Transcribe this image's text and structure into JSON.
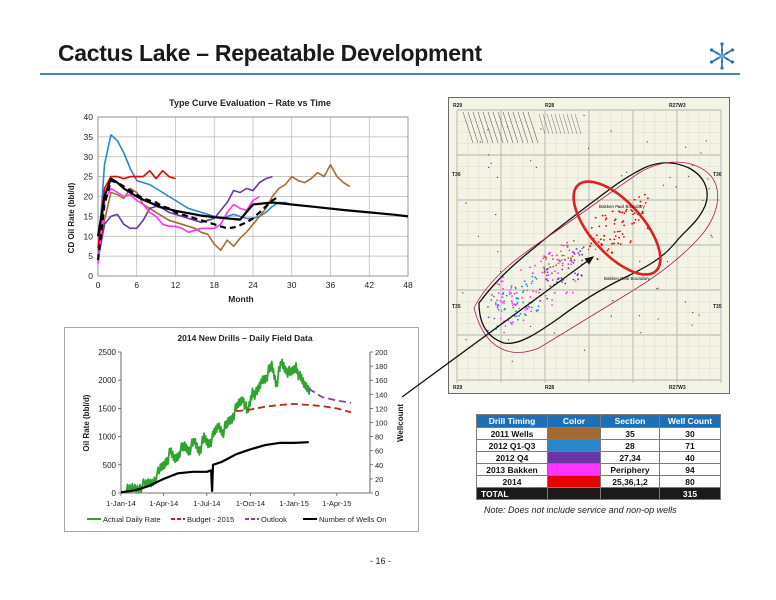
{
  "page": {
    "title": "Cactus Lake – Repeatable Development",
    "page_number": "- 16 -",
    "note": "Note: Does not include service and non-op wells",
    "brand_color": "#3d86c6"
  },
  "map": {
    "range_labels": [
      "R29",
      "R28",
      "R27W3",
      "R29",
      "R28",
      "R27W3"
    ],
    "township_labels": [
      "T36",
      "T36",
      "T35",
      "T35"
    ],
    "area_labels": [
      "Bakken Pool Boundary",
      "Bakken Pool Boundary"
    ],
    "highlight_color": "#e02020"
  },
  "table": {
    "headers": [
      "Drill Timing",
      "Color",
      "Section",
      "Well Count"
    ],
    "rows": [
      {
        "timing": "2011 Wells",
        "color": "#a36b32",
        "section": "35",
        "count": "30"
      },
      {
        "timing": "2012 Q1-Q3",
        "color": "#2b86c9",
        "section": "28",
        "count": "71"
      },
      {
        "timing": "2012 Q4",
        "color": "#6a35a8",
        "section": "27,34",
        "count": "40"
      },
      {
        "timing": "2013 Bakken",
        "color": "#ff33ff",
        "section": "Periphery",
        "count": "94"
      },
      {
        "timing": "2014",
        "color": "#e60000",
        "section": "25,36,1,2",
        "count": "80"
      }
    ],
    "total_label": "TOTAL",
    "total_count": "315"
  },
  "chart_data": [
    {
      "type": "line",
      "title": "Type Curve Evaluation – Rate vs Time",
      "xlabel": "Month",
      "ylabel": "CD Oil Rate (bbl/d)",
      "xlim": [
        0,
        48
      ],
      "ylim": [
        0,
        40
      ],
      "x_ticks": [
        0,
        6,
        12,
        18,
        24,
        30,
        36,
        42,
        48
      ],
      "y_ticks": [
        0,
        5,
        10,
        15,
        20,
        25,
        30,
        35,
        40
      ],
      "grid": true,
      "series": [
        {
          "color": "#2b86c9",
          "width": 1.6,
          "dash": "",
          "x": [
            0,
            1,
            2,
            3,
            4,
            5,
            6,
            7,
            8,
            9,
            10,
            11,
            12,
            13,
            14,
            15,
            16,
            17,
            18,
            19,
            20,
            21,
            22,
            23,
            24,
            25,
            26,
            27,
            28,
            29,
            30
          ],
          "y": [
            5,
            28,
            35.5,
            34,
            31,
            27,
            24,
            23.5,
            23,
            22,
            21,
            20,
            19,
            18,
            17,
            16.5,
            16,
            15.5,
            15,
            14.5,
            15,
            15.5,
            15,
            14.5,
            14.5,
            15,
            16,
            17.5,
            18.5,
            18.5,
            18
          ]
        },
        {
          "color": "#a36b32",
          "width": 1.6,
          "dash": "",
          "x": [
            0,
            1,
            2,
            3,
            4,
            5,
            6,
            7,
            8,
            9,
            10,
            11,
            12,
            13,
            14,
            15,
            16,
            17,
            18,
            19,
            20,
            21,
            22,
            23,
            24,
            25,
            26,
            27,
            28,
            29,
            30,
            31,
            32,
            33,
            34,
            35,
            36,
            37,
            38,
            39
          ],
          "y": [
            6,
            14,
            21,
            20.5,
            19.5,
            22,
            21,
            18,
            17,
            16,
            15,
            14,
            13.5,
            13,
            12.5,
            12,
            11,
            10.5,
            8,
            6.5,
            9,
            7.5,
            9.5,
            11,
            13,
            15,
            17,
            20,
            22,
            23,
            25,
            24,
            23.5,
            24.5,
            26,
            25,
            28,
            25,
            23.5,
            22.5
          ]
        },
        {
          "color": "#6a35a8",
          "width": 1.6,
          "dash": "",
          "x": [
            0,
            1,
            2,
            3,
            4,
            5,
            6,
            7,
            8,
            9,
            10,
            11,
            12,
            13,
            14,
            15,
            16,
            17,
            18,
            19,
            20,
            21,
            22,
            23,
            24,
            25,
            26,
            27
          ],
          "y": [
            4,
            13,
            15,
            15.5,
            13,
            12,
            12,
            14,
            17,
            17.5,
            17,
            16,
            15.5,
            15,
            14.5,
            14,
            13.5,
            14,
            14.5,
            16.5,
            18.5,
            21.5,
            21,
            22,
            21.5,
            23.5,
            24.5,
            25
          ]
        },
        {
          "color": "#ff33ff",
          "width": 1.6,
          "dash": "",
          "x": [
            0,
            1,
            2,
            3,
            4,
            5,
            6,
            7,
            8,
            9,
            10,
            11,
            12,
            13,
            14,
            15,
            16,
            17,
            18,
            19,
            20,
            21,
            22,
            23,
            24,
            25
          ],
          "y": [
            3,
            19,
            22,
            21,
            20,
            20.5,
            19,
            18,
            16,
            15,
            13,
            12.5,
            12.5,
            12,
            11,
            11.5,
            12,
            12,
            12,
            13,
            16,
            18,
            17,
            16.5,
            19,
            20
          ]
        },
        {
          "color": "#e60000",
          "width": 1.6,
          "dash": "",
          "x": [
            0,
            1,
            2,
            3,
            4,
            5,
            6,
            7,
            8,
            9,
            10,
            11,
            12
          ],
          "y": [
            7,
            22,
            25,
            25,
            24.5,
            25,
            25,
            25,
            26.5,
            24.5,
            26.5,
            25,
            24.5
          ]
        },
        {
          "color": "#000000",
          "width": 2.2,
          "dash": "6,4",
          "x": [
            0,
            1,
            2,
            3,
            4,
            5,
            6,
            7,
            8,
            9,
            10,
            11,
            12,
            13,
            14,
            15,
            16,
            17,
            18,
            19,
            20,
            21,
            22,
            23,
            24,
            25,
            26,
            27,
            28
          ],
          "y": [
            4,
            18,
            24,
            23.5,
            22.5,
            21.5,
            20.5,
            19.5,
            19,
            18.5,
            17.5,
            17,
            16,
            15.5,
            15,
            14.5,
            14,
            13.5,
            13,
            12.5,
            12,
            12.2,
            12.8,
            13.5,
            14.5,
            16,
            17.5,
            19,
            20
          ]
        },
        {
          "color": "#000000",
          "width": 2.2,
          "dash": "",
          "x": [
            0,
            1,
            2,
            3,
            4,
            5,
            6,
            7,
            8,
            9,
            10,
            11,
            12,
            14,
            16,
            18,
            20,
            22,
            24,
            27,
            30,
            34,
            38,
            42,
            46,
            48
          ],
          "y": [
            10,
            20,
            24.5,
            23.5,
            22,
            21,
            20,
            19.2,
            18.5,
            17.8,
            17.2,
            16.8,
            16.4,
            15.8,
            15.2,
            14.8,
            14.5,
            14.2,
            18,
            18.5,
            18,
            17.3,
            16.6,
            16,
            15.4,
            15
          ]
        }
      ]
    },
    {
      "type": "line",
      "title": "2014 New Drills – Daily Field Data",
      "ylabel": "Oil Rate (bbl/d)",
      "y2label": "Wellcount",
      "x_ticks": [
        "1-Jan-14",
        "1-Apr-14",
        "1-Jul-14",
        "1-Oct-14",
        "1-Jan-15",
        "1-Apr-15"
      ],
      "ylim": [
        0,
        2500
      ],
      "y_ticks": [
        0,
        500,
        1000,
        1500,
        2000,
        2500
      ],
      "y2lim": [
        0,
        200
      ],
      "y2_ticks": [
        0,
        20,
        40,
        60,
        80,
        100,
        120,
        140,
        160,
        180,
        200
      ],
      "legend": "bottom",
      "series": [
        {
          "name": "Actual Daily Rate",
          "color": "#2ea32e",
          "axis": "left",
          "dash": "",
          "width": 1.8,
          "x": [
            "2014-01-10",
            "2014-01-25",
            "2014-02-10",
            "2014-02-25",
            "2014-03-10",
            "2014-03-25",
            "2014-04-05",
            "2014-04-15",
            "2014-04-25",
            "2014-05-05",
            "2014-05-15",
            "2014-05-25",
            "2014-06-05",
            "2014-06-15",
            "2014-06-25",
            "2014-07-05",
            "2014-07-15",
            "2014-07-25",
            "2014-08-05",
            "2014-08-15",
            "2014-08-25",
            "2014-09-05",
            "2014-09-15",
            "2014-09-25",
            "2014-10-05",
            "2014-10-15",
            "2014-10-25",
            "2014-11-05",
            "2014-11-15",
            "2014-11-25",
            "2014-12-05",
            "2014-12-15",
            "2014-12-25",
            "2015-01-05",
            "2015-01-15",
            "2015-01-25",
            "2015-02-05"
          ],
          "y": [
            20,
            80,
            120,
            150,
            220,
            400,
            550,
            700,
            600,
            750,
            820,
            780,
            900,
            760,
            950,
            880,
            1000,
            1200,
            1100,
            1250,
            1380,
            1550,
            1700,
            1400,
            1800,
            1750,
            2000,
            2100,
            2250,
            1950,
            2300,
            2200,
            2100,
            2250,
            2000,
            1900,
            1850
          ]
        },
        {
          "name": "Budget - 2015",
          "color": "#cc1f1f",
          "axis": "left",
          "dash": "7,4",
          "width": 1.8,
          "x": [
            "2014-09-01",
            "2014-10-01",
            "2014-11-01",
            "2014-12-01",
            "2015-01-01",
            "2015-02-01",
            "2015-03-01",
            "2015-04-01",
            "2015-05-01"
          ],
          "y": [
            1450,
            1480,
            1530,
            1560,
            1580,
            1560,
            1540,
            1500,
            1430
          ]
        },
        {
          "name": "Outlook",
          "color": "#8a3ac0",
          "axis": "left",
          "dash": "7,4",
          "width": 1.8,
          "x": [
            "2015-02-01",
            "2015-03-01",
            "2015-04-01",
            "2015-05-01"
          ],
          "y": [
            1850,
            1700,
            1640,
            1600
          ]
        },
        {
          "name": "Number of Wells On",
          "color": "#000000",
          "axis": "right",
          "dash": "",
          "width": 2.2,
          "x": [
            "2014-01-01",
            "2014-02-01",
            "2014-03-01",
            "2014-04-01",
            "2014-05-01",
            "2014-06-01",
            "2014-07-01",
            "2014-07-10",
            "2014-07-12",
            "2014-07-14",
            "2014-08-01",
            "2014-09-01",
            "2014-10-01",
            "2014-11-01",
            "2014-12-01",
            "2015-01-01",
            "2015-02-01"
          ],
          "y": [
            1,
            4,
            10,
            20,
            28,
            30,
            30,
            32,
            3,
            40,
            44,
            55,
            62,
            68,
            71,
            71,
            72
          ]
        }
      ]
    }
  ]
}
